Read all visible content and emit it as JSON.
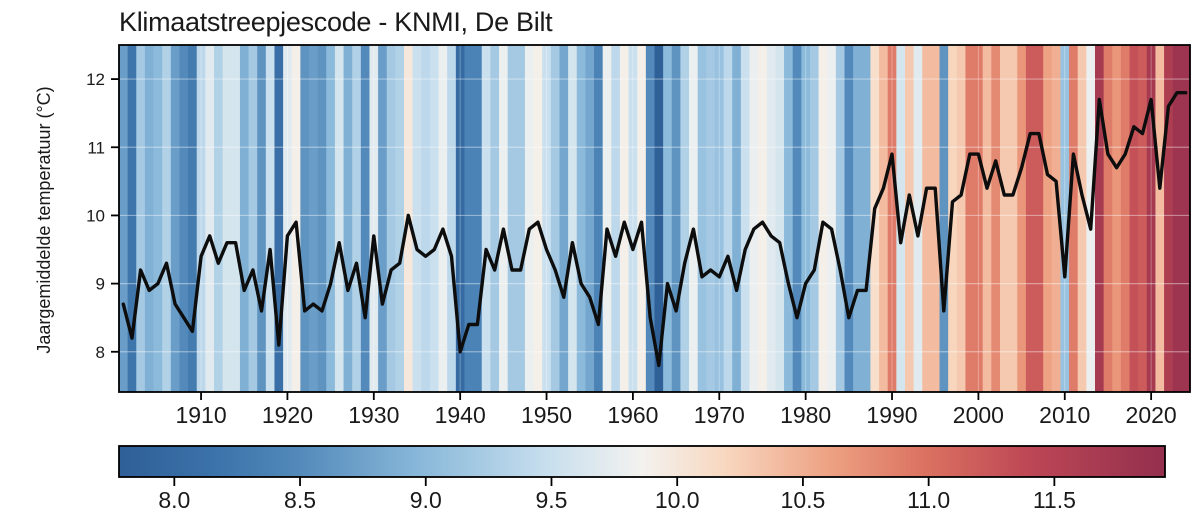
{
  "title": "Klimaatstreepjescode - KNMI, De Bilt",
  "y_axis": {
    "label": "Jaargemiddelde temperatuur (°C)",
    "ticks": [
      8,
      9,
      10,
      11,
      12
    ],
    "min": 7.41,
    "max": 12.5
  },
  "x_axis": {
    "ticks": [
      1910,
      1920,
      1930,
      1940,
      1950,
      1960,
      1970,
      1980,
      1990,
      2000,
      2010,
      2020
    ],
    "min": 1900.5,
    "max": 2024.5
  },
  "colorbar": {
    "tick_labels": [
      "8.0",
      "8.5",
      "9.0",
      "9.5",
      "10.0",
      "10.5",
      "11.0",
      "11.5"
    ],
    "vmin": 7.78,
    "vmax": 11.94
  },
  "colors": {
    "line": "#0d0d0d",
    "axis": "#000000",
    "background": "#ffffff",
    "gridline": "#ffffff",
    "colormap_stops": [
      [
        0.0,
        "#2f5f97"
      ],
      [
        0.09,
        "#3b72a9"
      ],
      [
        0.17,
        "#5289ba"
      ],
      [
        0.29,
        "#8ab9da"
      ],
      [
        0.41,
        "#c8dfee"
      ],
      [
        0.5,
        "#f3f2ef"
      ],
      [
        0.58,
        "#f8d7bf"
      ],
      [
        0.68,
        "#eda183"
      ],
      [
        0.77,
        "#db7261"
      ],
      [
        0.87,
        "#bd4755"
      ],
      [
        1.0,
        "#932f4e"
      ]
    ]
  },
  "chart_data": {
    "type": "line",
    "title": "Klimaatstreepjescode - KNMI, De Bilt",
    "xlabel": "",
    "ylabel": "Jaargemiddelde temperatuur (°C)",
    "description": "Warming stripes (klimaatstreepjescode) for De Bilt: one vertical stripe per year colored by annual mean temperature on a blue-white-red diverging scale, with the annual mean temperature line overlaid in black.",
    "xlim": [
      1900.5,
      2024.5
    ],
    "ylim": [
      7.41,
      12.5
    ],
    "x_ticks": [
      1910,
      1920,
      1930,
      1940,
      1950,
      1960,
      1970,
      1980,
      1990,
      2000,
      2010,
      2020
    ],
    "y_ticks": [
      8,
      9,
      10,
      11,
      12
    ],
    "grid": "faint white horizontal and vertical gridlines over stripes",
    "legend_position": "none",
    "years": [
      1901,
      1902,
      1903,
      1904,
      1905,
      1906,
      1907,
      1908,
      1909,
      1910,
      1911,
      1912,
      1913,
      1914,
      1915,
      1916,
      1917,
      1918,
      1919,
      1920,
      1921,
      1922,
      1923,
      1924,
      1925,
      1926,
      1927,
      1928,
      1929,
      1930,
      1931,
      1932,
      1933,
      1934,
      1935,
      1936,
      1937,
      1938,
      1939,
      1940,
      1941,
      1942,
      1943,
      1944,
      1945,
      1946,
      1947,
      1948,
      1949,
      1950,
      1951,
      1952,
      1953,
      1954,
      1955,
      1956,
      1957,
      1958,
      1959,
      1960,
      1961,
      1962,
      1963,
      1964,
      1965,
      1966,
      1967,
      1968,
      1969,
      1970,
      1971,
      1972,
      1973,
      1974,
      1975,
      1976,
      1977,
      1978,
      1979,
      1980,
      1981,
      1982,
      1983,
      1984,
      1985,
      1986,
      1987,
      1988,
      1989,
      1990,
      1991,
      1992,
      1993,
      1994,
      1995,
      1996,
      1997,
      1998,
      1999,
      2000,
      2001,
      2002,
      2003,
      2004,
      2005,
      2006,
      2007,
      2008,
      2009,
      2010,
      2011,
      2012,
      2013,
      2014,
      2015,
      2016,
      2017,
      2018,
      2019,
      2020,
      2021,
      2022,
      2023,
      2024
    ],
    "values": [
      8.7,
      8.2,
      9.2,
      8.9,
      9.0,
      9.3,
      8.7,
      8.5,
      8.3,
      9.4,
      9.7,
      9.3,
      9.6,
      9.6,
      8.9,
      9.2,
      8.6,
      9.5,
      8.1,
      9.7,
      9.9,
      8.6,
      8.7,
      8.6,
      9.0,
      9.6,
      8.9,
      9.3,
      8.5,
      9.7,
      8.7,
      9.2,
      9.3,
      10.0,
      9.5,
      9.4,
      9.5,
      9.8,
      9.4,
      8.0,
      8.4,
      8.4,
      9.5,
      9.2,
      9.8,
      9.2,
      9.2,
      9.8,
      9.9,
      9.5,
      9.2,
      8.8,
      9.6,
      9.0,
      8.8,
      8.4,
      9.8,
      9.4,
      9.9,
      9.5,
      9.9,
      8.5,
      7.8,
      9.0,
      8.6,
      9.3,
      9.8,
      9.1,
      9.2,
      9.1,
      9.4,
      8.9,
      9.5,
      9.8,
      9.9,
      9.7,
      9.6,
      9.0,
      8.5,
      9.0,
      9.2,
      9.9,
      9.8,
      9.2,
      8.5,
      8.9,
      8.9,
      10.1,
      10.4,
      10.9,
      9.6,
      10.3,
      9.7,
      10.4,
      10.4,
      8.6,
      10.2,
      10.3,
      10.9,
      10.9,
      10.4,
      10.8,
      10.3,
      10.3,
      10.7,
      11.2,
      11.2,
      10.6,
      10.5,
      9.1,
      10.9,
      10.3,
      9.8,
      11.7,
      10.9,
      10.7,
      10.9,
      11.3,
      11.2,
      11.7,
      10.4,
      11.6,
      11.8,
      11.8
    ]
  }
}
